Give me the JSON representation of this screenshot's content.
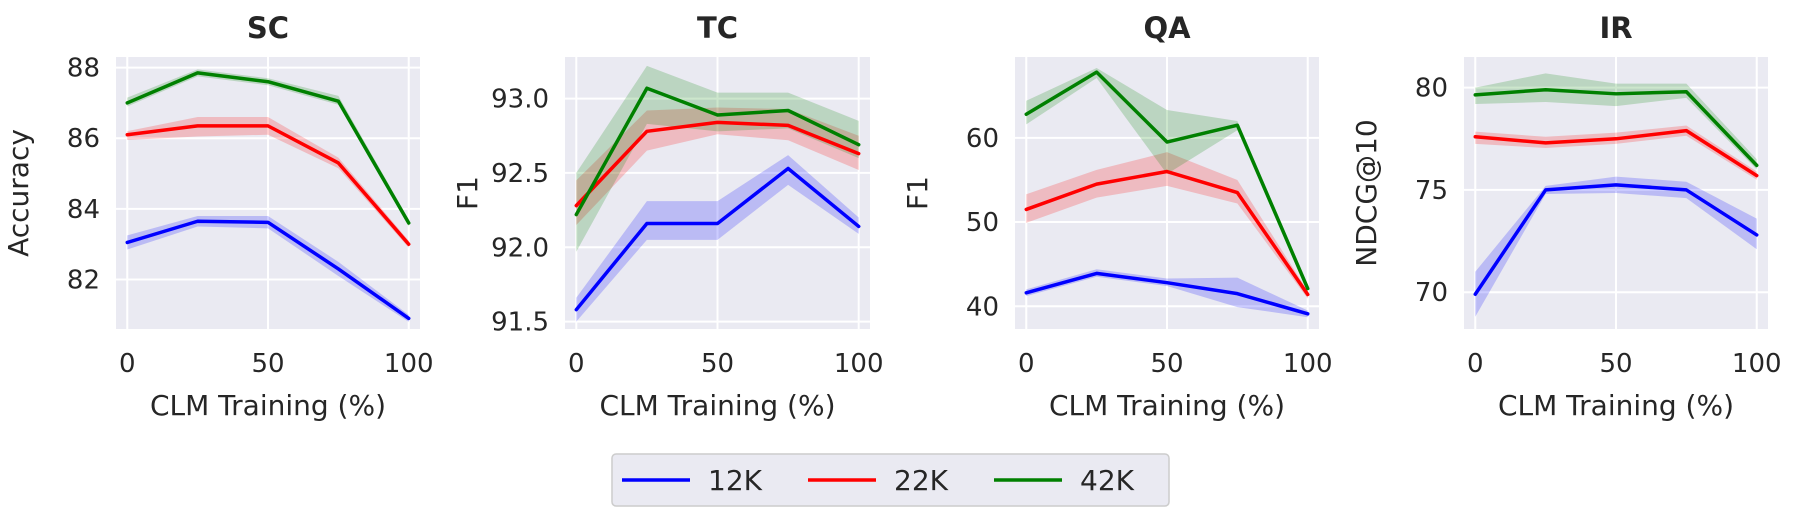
{
  "chart_data": {
    "type": "line",
    "x": [
      0,
      25,
      50,
      75,
      100
    ],
    "xlabel": "CLM Training (%)",
    "xticks": [
      0,
      50,
      100
    ],
    "xlim": [
      -4,
      104
    ],
    "colors": {
      "12K": "#0000ff",
      "22K": "#ff0000",
      "42K": "#008000"
    },
    "legend": {
      "position": "bottom-center",
      "entries": [
        "12K",
        "22K",
        "42K"
      ]
    },
    "panels": [
      {
        "title": "SC",
        "ylabel": "Accuracy",
        "ylim": [
          80.6,
          88.3
        ],
        "yticks": [
          82,
          84,
          86,
          88
        ],
        "series": [
          {
            "name": "12K",
            "values": [
              83.05,
              83.65,
              83.62,
              82.3,
              80.9
            ],
            "lower": [
              82.85,
              83.5,
              83.45,
              82.1,
              80.8
            ],
            "upper": [
              83.25,
              83.8,
              83.8,
              82.5,
              81.0
            ]
          },
          {
            "name": "22K",
            "values": [
              86.1,
              86.35,
              86.35,
              85.3,
              83.0
            ],
            "lower": [
              85.95,
              86.05,
              86.1,
              85.15,
              82.9
            ],
            "upper": [
              86.2,
              86.6,
              86.6,
              85.45,
              83.1
            ]
          },
          {
            "name": "42K",
            "values": [
              87.0,
              87.85,
              87.6,
              87.05,
              83.6
            ],
            "lower": [
              86.9,
              87.75,
              87.5,
              86.95,
              83.5
            ],
            "upper": [
              87.15,
              87.95,
              87.7,
              87.2,
              83.7
            ]
          }
        ]
      },
      {
        "title": "TC",
        "ylabel": "F1",
        "ylim": [
          91.45,
          93.28
        ],
        "yticks": [
          91.5,
          92.0,
          92.5,
          93.0
        ],
        "ytick_labels": [
          "91.5",
          "92.0",
          "92.5",
          "93.0"
        ],
        "series": [
          {
            "name": "12K",
            "values": [
              91.58,
              92.16,
              92.16,
              92.53,
              92.14
            ],
            "lower": [
              91.5,
              92.05,
              92.05,
              92.42,
              92.09
            ],
            "upper": [
              91.66,
              92.31,
              92.31,
              92.62,
              92.2
            ]
          },
          {
            "name": "22K",
            "values": [
              92.28,
              92.78,
              92.84,
              92.82,
              92.63
            ],
            "lower": [
              92.15,
              92.65,
              92.76,
              92.72,
              92.52
            ],
            "upper": [
              92.45,
              92.92,
              92.94,
              92.93,
              92.75
            ]
          },
          {
            "name": "42K",
            "values": [
              92.22,
              93.07,
              92.89,
              92.92,
              92.69
            ],
            "lower": [
              91.97,
              92.83,
              92.78,
              92.8,
              92.6
            ],
            "upper": [
              92.5,
              93.22,
              93.04,
              93.04,
              92.85
            ]
          }
        ]
      },
      {
        "title": "QA",
        "ylabel": "F1",
        "ylim": [
          37.3,
          69.6
        ],
        "yticks": [
          40,
          50,
          60
        ],
        "series": [
          {
            "name": "12K",
            "values": [
              41.6,
              43.9,
              42.8,
              41.5,
              39.1
            ],
            "lower": [
              41.2,
              43.5,
              42.4,
              39.9,
              38.7
            ],
            "upper": [
              42.0,
              44.4,
              43.3,
              43.4,
              39.5
            ]
          },
          {
            "name": "22K",
            "values": [
              51.5,
              54.5,
              56.0,
              53.5,
              41.4
            ],
            "lower": [
              49.9,
              52.9,
              54.3,
              52.2,
              40.9
            ],
            "upper": [
              53.3,
              56.2,
              58.3,
              55.0,
              41.8
            ]
          },
          {
            "name": "42K",
            "values": [
              62.8,
              67.8,
              59.5,
              61.5,
              42.1
            ],
            "lower": [
              61.6,
              67.1,
              55.7,
              60.9,
              41.6
            ],
            "upper": [
              64.4,
              68.3,
              63.3,
              62.0,
              42.6
            ]
          }
        ]
      },
      {
        "title": "IR",
        "ylabel": "NDCG@10",
        "ylim": [
          68.2,
          81.5
        ],
        "yticks": [
          70,
          75,
          80
        ],
        "series": [
          {
            "name": "12K",
            "values": [
              69.9,
              75.0,
              75.25,
              75.0,
              72.8
            ],
            "lower": [
              68.8,
              74.8,
              74.85,
              74.6,
              72.1
            ],
            "upper": [
              71.0,
              75.2,
              75.65,
              75.4,
              73.6
            ]
          },
          {
            "name": "22K",
            "values": [
              77.6,
              77.3,
              77.5,
              77.9,
              75.7
            ],
            "lower": [
              77.25,
              77.05,
              77.25,
              77.65,
              75.5
            ],
            "upper": [
              77.85,
              77.6,
              77.8,
              78.15,
              75.9
            ]
          },
          {
            "name": "42K",
            "values": [
              79.65,
              79.9,
              79.7,
              79.8,
              76.2
            ],
            "lower": [
              79.2,
              79.3,
              79.1,
              79.5,
              76.0
            ],
            "upper": [
              80.0,
              80.7,
              80.2,
              80.2,
              76.5
            ]
          }
        ]
      }
    ]
  }
}
